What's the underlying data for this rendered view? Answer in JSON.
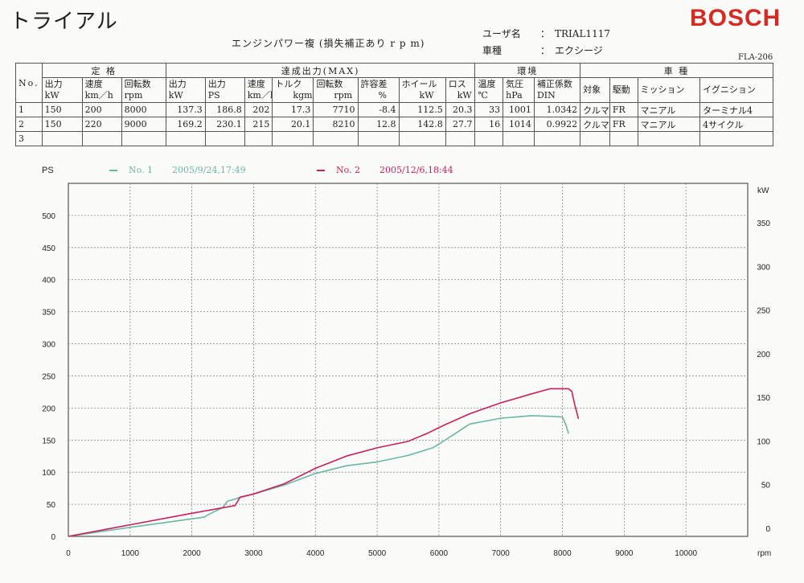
{
  "header": {
    "title": "トライアル",
    "logo": "BOSCH",
    "subtitle": "エンジンパワー複 (損失補正あり r p m)",
    "user_label": "ユーザ名",
    "user_value": "TRIAL1117",
    "vehicle_label": "車種",
    "vehicle_value": "エクシージ",
    "form_code": "FLA-206"
  },
  "table": {
    "groups": {
      "no": "No.",
      "rated": "定 格",
      "achieved": "達成出力(MAX)",
      "env": "環境",
      "vehicle": "車 種"
    },
    "columns": [
      "出力\nkW",
      "速度\nkm／h",
      "回転数\nrpm",
      "出力\nkW",
      "出力\nPS",
      "速度\nkm／h",
      "トルク\n　　kgm",
      "回転数\n　　rpm",
      "許容差\n　　%",
      "ホイール\n　　kW",
      "ロス\n　kW",
      "温度\n℃",
      "気圧\nhPa",
      "補正係数\nDIN",
      "対象",
      "駆動",
      "ミッション",
      "イグニション"
    ],
    "rows": [
      [
        "1",
        "150",
        "200",
        "8000",
        "137.3",
        "186.8",
        "202",
        "17.3",
        "7710",
        "-8.4",
        "112.5",
        "20.3",
        "33",
        "1001",
        "1.0342",
        "クルマ",
        "FR",
        "マニアル",
        "ターミナル4"
      ],
      [
        "2",
        "150",
        "220",
        "9000",
        "169.2",
        "230.1",
        "215",
        "20.1",
        "8210",
        "12.8",
        "142.8",
        "27.7",
        "16",
        "1014",
        "0.9922",
        "クルマ",
        "FR",
        "マニアル",
        "4サイクル"
      ],
      [
        "3",
        "",
        "",
        "",
        "",
        "",
        "",
        "",
        "",
        "",
        "",
        "",
        "",
        "",
        "",
        "",
        "",
        "",
        ""
      ]
    ]
  },
  "legend": {
    "series1_name": "No. 1",
    "series1_time": "2005/9/24,17:49",
    "series2_name": "No. 2",
    "series2_time": "2005/12/6,18:44"
  },
  "chart_data": {
    "type": "line",
    "ylabel": "PS",
    "y2label": "kW",
    "xunit": "rpm",
    "xlim": [
      0,
      11000
    ],
    "ylim": [
      0,
      550
    ],
    "y2lim": [
      0,
      404.5
    ],
    "xticks": [
      0,
      1000,
      2000,
      3000,
      4000,
      5000,
      6000,
      7000,
      8000,
      9000,
      10000
    ],
    "yticks": [
      0,
      50,
      100,
      150,
      200,
      250,
      300,
      350,
      400,
      450,
      500
    ],
    "y2ticks": [
      0,
      50,
      100,
      150,
      200,
      250,
      300,
      350
    ],
    "grid": true,
    "colors": {
      "series1": "#6bb8a0",
      "series2": "#c8205a"
    },
    "series": [
      {
        "name": "No. 1",
        "color": "#6bb8a0",
        "x": [
          0,
          1000,
          2200,
          2250,
          2500,
          2580,
          2700,
          2750,
          3000,
          3500,
          4000,
          4500,
          5000,
          5500,
          5900,
          6100,
          6500,
          7000,
          7500,
          7800,
          8000,
          8050,
          8100
        ],
        "y": [
          0,
          14,
          30,
          33,
          45,
          55,
          58,
          60,
          66,
          80,
          98,
          110,
          116,
          126,
          138,
          150,
          175,
          184,
          188,
          187,
          186,
          175,
          160
        ]
      },
      {
        "name": "No. 2",
        "color": "#c8205a",
        "x": [
          0,
          1000,
          2000,
          2700,
          2780,
          3000,
          3500,
          4000,
          4500,
          5000,
          5500,
          5800,
          6100,
          6500,
          7000,
          7500,
          7800,
          8100,
          8150,
          8200,
          8260
        ],
        "y": [
          0,
          18,
          36,
          48,
          61,
          66,
          82,
          106,
          125,
          138,
          148,
          160,
          174,
          191,
          208,
          222,
          230,
          230,
          226,
          205,
          183
        ]
      }
    ]
  }
}
